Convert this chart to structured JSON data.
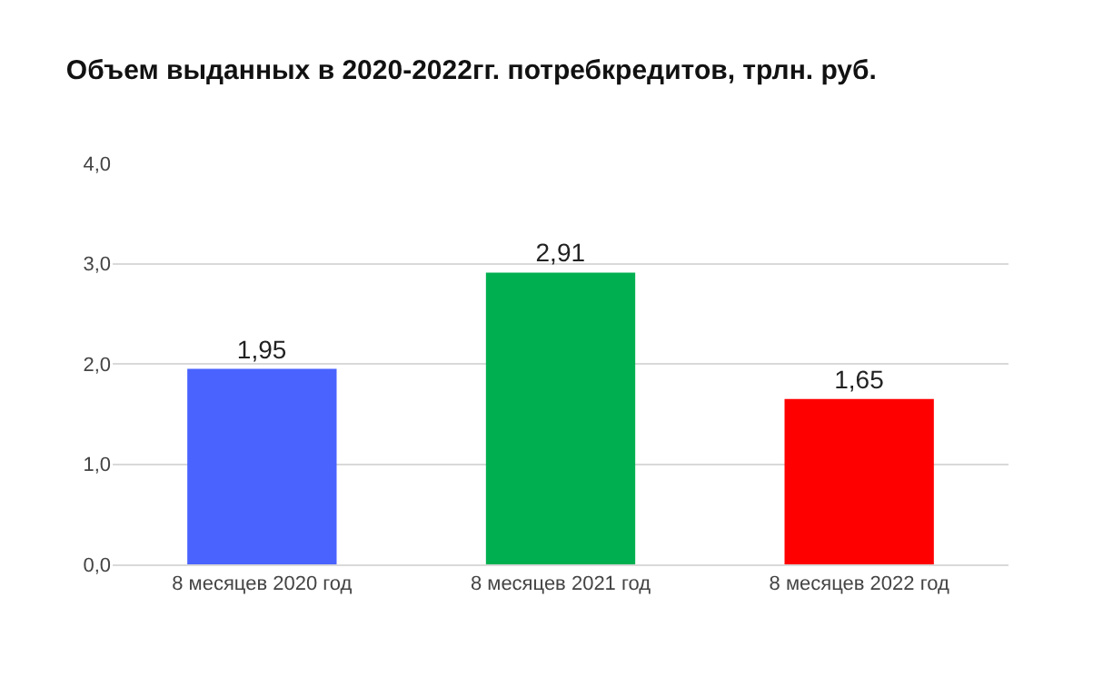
{
  "chart_data": {
    "type": "bar",
    "title": "Объем выданных в 2020-2022гг. потребкредитов, трлн. руб.",
    "categories": [
      "8 месяцев 2020 год",
      "8 месяцев 2021 год",
      "8 месяцев 2022 год"
    ],
    "values": [
      1.95,
      2.91,
      1.65
    ],
    "value_labels": [
      "1,95",
      "2,91",
      "1,65"
    ],
    "colors": [
      "#4a63ff",
      "#00b050",
      "#ff0000"
    ],
    "ylim": [
      0,
      4
    ],
    "yticks": [
      {
        "value": 0,
        "label": "0,0"
      },
      {
        "value": 1,
        "label": "1,0"
      },
      {
        "value": 2,
        "label": "2,0"
      },
      {
        "value": 3,
        "label": "3,0"
      },
      {
        "value": 4,
        "label": "4,0"
      }
    ],
    "grid": "y",
    "legend": false
  }
}
